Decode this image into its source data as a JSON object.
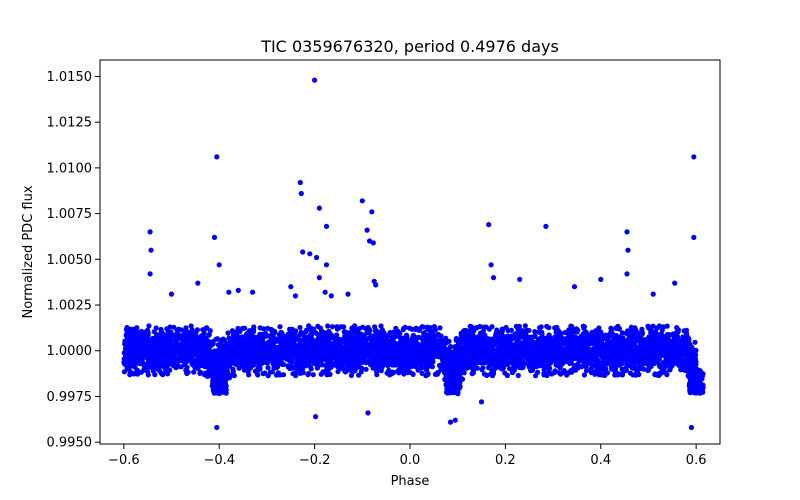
{
  "chart_data": {
    "type": "scatter",
    "title": "TIC 0359676320, period 0.4976 days",
    "xlabel": "Phase",
    "ylabel": "Normalized PDC flux",
    "xlim": [
      -0.65,
      0.65
    ],
    "ylim": [
      0.9949,
      1.0159
    ],
    "xticks": [
      -0.6,
      -0.4,
      -0.2,
      0.0,
      0.2,
      0.4,
      0.6
    ],
    "xtick_labels": [
      "−0.6",
      "−0.4",
      "−0.2",
      "0.0",
      "0.2",
      "0.4",
      "0.6"
    ],
    "yticks": [
      0.995,
      0.9975,
      1.0,
      1.0025,
      1.005,
      1.0075,
      1.01,
      1.0125,
      1.015
    ],
    "ytick_labels": [
      "0.9950",
      "0.9975",
      "1.0000",
      "1.0025",
      "1.0050",
      "1.0075",
      "1.0100",
      "1.0125",
      "1.0150"
    ],
    "grid": false,
    "series": [
      {
        "name": "flux",
        "color": "#0000ff",
        "band": {
          "x_range": [
            -0.6,
            0.6
          ],
          "center": 1.0,
          "half_width": 0.0013,
          "dips": [
            {
              "phase": -0.4,
              "depth": 0.0012
            },
            {
              "phase": 0.09,
              "depth": 0.0012
            },
            {
              "phase": 0.6,
              "depth": 0.0012
            }
          ]
        },
        "outliers": [
          {
            "x": -0.2,
            "y": 1.0148
          },
          {
            "x": -0.405,
            "y": 1.0106
          },
          {
            "x": 0.595,
            "y": 1.0106
          },
          {
            "x": -0.23,
            "y": 1.0092
          },
          {
            "x": -0.228,
            "y": 1.0086
          },
          {
            "x": -0.1,
            "y": 1.0082
          },
          {
            "x": -0.19,
            "y": 1.0078
          },
          {
            "x": -0.08,
            "y": 1.0076
          },
          {
            "x": -0.175,
            "y": 1.0068
          },
          {
            "x": 0.165,
            "y": 1.0069
          },
          {
            "x": 0.285,
            "y": 1.0068
          },
          {
            "x": -0.545,
            "y": 1.0065
          },
          {
            "x": 0.455,
            "y": 1.0065
          },
          {
            "x": -0.09,
            "y": 1.0066
          },
          {
            "x": -0.41,
            "y": 1.0062
          },
          {
            "x": 0.595,
            "y": 1.0062
          },
          {
            "x": -0.085,
            "y": 1.006
          },
          {
            "x": -0.077,
            "y": 1.0059
          },
          {
            "x": -0.543,
            "y": 1.0055
          },
          {
            "x": 0.457,
            "y": 1.0055
          },
          {
            "x": -0.225,
            "y": 1.0054
          },
          {
            "x": -0.21,
            "y": 1.0053
          },
          {
            "x": -0.196,
            "y": 1.0051
          },
          {
            "x": -0.4,
            "y": 1.0047
          },
          {
            "x": 0.17,
            "y": 1.0047
          },
          {
            "x": -0.175,
            "y": 1.0047
          },
          {
            "x": -0.545,
            "y": 1.0042
          },
          {
            "x": 0.455,
            "y": 1.0042
          },
          {
            "x": -0.19,
            "y": 1.004
          },
          {
            "x": 0.175,
            "y": 1.004
          },
          {
            "x": 0.23,
            "y": 1.0039
          },
          {
            "x": 0.4,
            "y": 1.0039
          },
          {
            "x": -0.075,
            "y": 1.0038
          },
          {
            "x": -0.072,
            "y": 1.0036
          },
          {
            "x": -0.445,
            "y": 1.0037
          },
          {
            "x": 0.555,
            "y": 1.0037
          },
          {
            "x": -0.25,
            "y": 1.0035
          },
          {
            "x": -0.36,
            "y": 1.0033
          },
          {
            "x": 0.345,
            "y": 1.0035
          },
          {
            "x": -0.38,
            "y": 1.0032
          },
          {
            "x": -0.33,
            "y": 1.0032
          },
          {
            "x": -0.13,
            "y": 1.0031
          },
          {
            "x": -0.5,
            "y": 1.0031
          },
          {
            "x": 0.51,
            "y": 1.0031
          },
          {
            "x": -0.24,
            "y": 1.003
          },
          {
            "x": -0.178,
            "y": 1.0032
          },
          {
            "x": -0.165,
            "y": 1.003
          },
          {
            "x": -0.405,
            "y": 0.9958
          },
          {
            "x": 0.59,
            "y": 0.9958
          },
          {
            "x": -0.198,
            "y": 0.9964
          },
          {
            "x": -0.088,
            "y": 0.9966
          },
          {
            "x": 0.15,
            "y": 0.9972
          },
          {
            "x": 0.095,
            "y": 0.9962
          },
          {
            "x": 0.085,
            "y": 0.9961
          }
        ]
      }
    ]
  }
}
